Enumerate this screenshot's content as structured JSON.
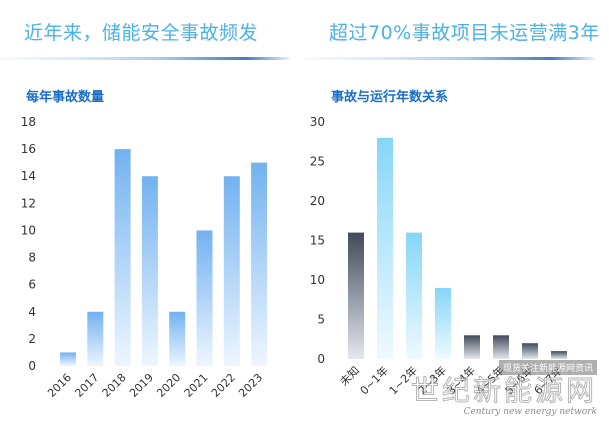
{
  "left": {
    "headline": "近年来，储能安全事故频发",
    "subtitle": "每年事故数量"
  },
  "right": {
    "headline": "超过70%事故项目未运营满3年",
    "subtitle": "事故与运行年数关系"
  },
  "colors": {
    "headline": "#4ab2e6",
    "subtitle": "#1a6fc9",
    "bar_blue_top": "#72b2f0",
    "bar_blue_bottom": "#eef6ff",
    "bar_cyan_top": "#86d6f8",
    "bar_cyan_bottom": "#f0faff",
    "bar_dark_top": "#404a5a",
    "bar_dark_bottom": "#e4e8ee"
  },
  "watermark": {
    "small": "现货关注新能源网资讯",
    "big": "世纪新能源网",
    "en": "Century new energy network"
  },
  "chart_data": [
    {
      "type": "bar",
      "title": "每年事故数量",
      "categories": [
        "2016",
        "2017",
        "2018",
        "2019",
        "2020",
        "2021",
        "2022",
        "2023"
      ],
      "values": [
        1,
        4,
        16,
        14,
        4,
        10,
        14,
        15
      ],
      "ylim": [
        0,
        18
      ],
      "yticks": [
        0,
        2,
        4,
        6,
        8,
        10,
        12,
        14,
        16,
        18
      ],
      "grid": false,
      "bar_style": [
        "blue",
        "blue",
        "blue",
        "blue",
        "blue",
        "blue",
        "blue",
        "blue"
      ]
    },
    {
      "type": "bar",
      "title": "事故与运行年数关系",
      "categories": [
        "未知",
        "0~1年",
        "1~2年",
        "2~3年",
        "3~4年",
        "4~5年",
        "5~6年",
        "6~7年"
      ],
      "values": [
        16,
        28,
        16,
        9,
        3,
        3,
        2,
        1
      ],
      "ylim": [
        0,
        30
      ],
      "yticks": [
        0,
        5,
        10,
        15,
        20,
        25,
        30
      ],
      "grid": false,
      "bar_style": [
        "dark",
        "cyan",
        "cyan",
        "cyan",
        "dark",
        "dark",
        "dark",
        "dark"
      ]
    }
  ]
}
